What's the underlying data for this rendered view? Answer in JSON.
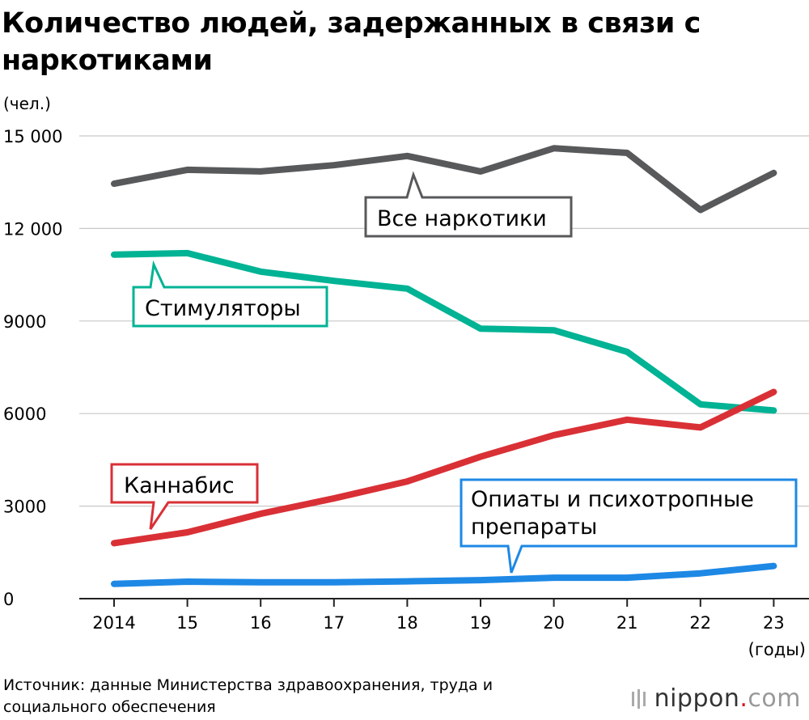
{
  "title": "Количество людей, задержанных в связи с наркотиками",
  "chart_data": {
    "type": "line",
    "unit_label": "(чел.)",
    "x_unit_label": "(годы)",
    "categories": [
      "2014",
      "15",
      "16",
      "17",
      "18",
      "19",
      "20",
      "21",
      "22",
      "23"
    ],
    "ylim": [
      0,
      15000
    ],
    "yticks": [
      0,
      3000,
      6000,
      9000,
      12000,
      15000
    ],
    "ytick_labels": [
      "0",
      "3000",
      "6000",
      "9000",
      "12 000",
      "15 000"
    ],
    "grid": true,
    "series": [
      {
        "name": "Все наркотики",
        "color": "#58595b",
        "values": [
          13450,
          13900,
          13850,
          14050,
          14350,
          13850,
          14600,
          14450,
          12600,
          13800
        ]
      },
      {
        "name": "Стимуляторы",
        "color": "#00b394",
        "values": [
          11150,
          11200,
          10600,
          10300,
          10050,
          8750,
          8700,
          8000,
          6300,
          6100
        ]
      },
      {
        "name": "Каннабис",
        "color": "#d93036",
        "values": [
          1800,
          2150,
          2750,
          3250,
          3800,
          4600,
          5300,
          5800,
          5550,
          6700
        ]
      },
      {
        "name": "Опиаты и психотропные препараты",
        "color": "#1e88e5",
        "values": [
          480,
          550,
          530,
          530,
          560,
          600,
          680,
          680,
          820,
          1060
        ]
      }
    ]
  },
  "labels": {
    "all": "Все наркотики",
    "stimulants": "Стимуляторы",
    "cannabis": "Каннабис",
    "opiates_line1": "Опиаты и психотропные",
    "opiates_line2": "препараты"
  },
  "source": "Источник: данные Министерства здравоохранения, труда и социального обеспечения",
  "brand": {
    "name": "nippon",
    "dot": ".",
    "tld": "com"
  }
}
